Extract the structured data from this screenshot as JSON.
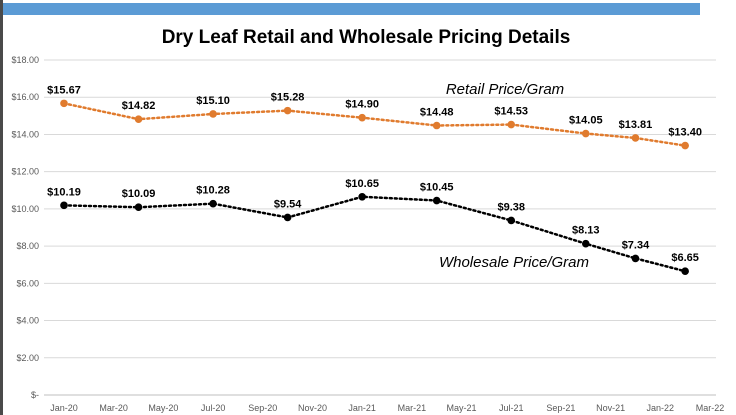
{
  "chart_data": {
    "type": "line",
    "title": "Dry Leaf Retail and Wholesale Pricing Details",
    "x_tick_labels": [
      "Jan-20",
      "Mar-20",
      "May-20",
      "Jul-20",
      "Sep-20",
      "Nov-20",
      "Jan-21",
      "Mar-21",
      "May-21",
      "Jul-21",
      "Sep-21",
      "Nov-21",
      "Jan-22",
      "Mar-22"
    ],
    "y_tick_labels": [
      "$-",
      "$2.00",
      "$4.00",
      "$6.00",
      "$8.00",
      "$10.00",
      "$12.00",
      "$14.00",
      "$16.00",
      "$18.00"
    ],
    "ylim": [
      0,
      18
    ],
    "grid": "horizontal",
    "series": [
      {
        "name": "Retail Price/Gram",
        "color": "#e07b2e",
        "line_style": "dotted",
        "x": [
          "Jan-20",
          "Apr-20",
          "Jul-20",
          "Oct-20",
          "Jan-21",
          "Apr-21",
          "Jul-21",
          "Oct-21",
          "Dec-21",
          "Feb-22"
        ],
        "values": [
          15.67,
          14.82,
          15.1,
          15.28,
          14.9,
          14.48,
          14.53,
          14.05,
          13.81,
          13.4
        ],
        "data_labels": [
          "$15.67",
          "$14.82",
          "$15.10",
          "$15.28",
          "$14.90",
          "$14.48",
          "$14.53",
          "$14.05",
          "$13.81",
          "$13.40"
        ]
      },
      {
        "name": "Wholesale Price/Gram",
        "color": "#000000",
        "line_style": "dotted",
        "x": [
          "Jan-20",
          "Apr-20",
          "Jul-20",
          "Oct-20",
          "Jan-21",
          "Apr-21",
          "Jul-21",
          "Oct-21",
          "Dec-21",
          "Feb-22"
        ],
        "values": [
          10.19,
          10.09,
          10.28,
          9.54,
          10.65,
          10.45,
          9.38,
          8.13,
          7.34,
          6.65
        ],
        "data_labels": [
          "$10.19",
          "$10.09",
          "$10.28",
          "$9.54",
          "$10.65",
          "$10.45",
          "$9.38",
          "$8.13",
          "$7.34",
          "$6.65"
        ]
      }
    ]
  }
}
